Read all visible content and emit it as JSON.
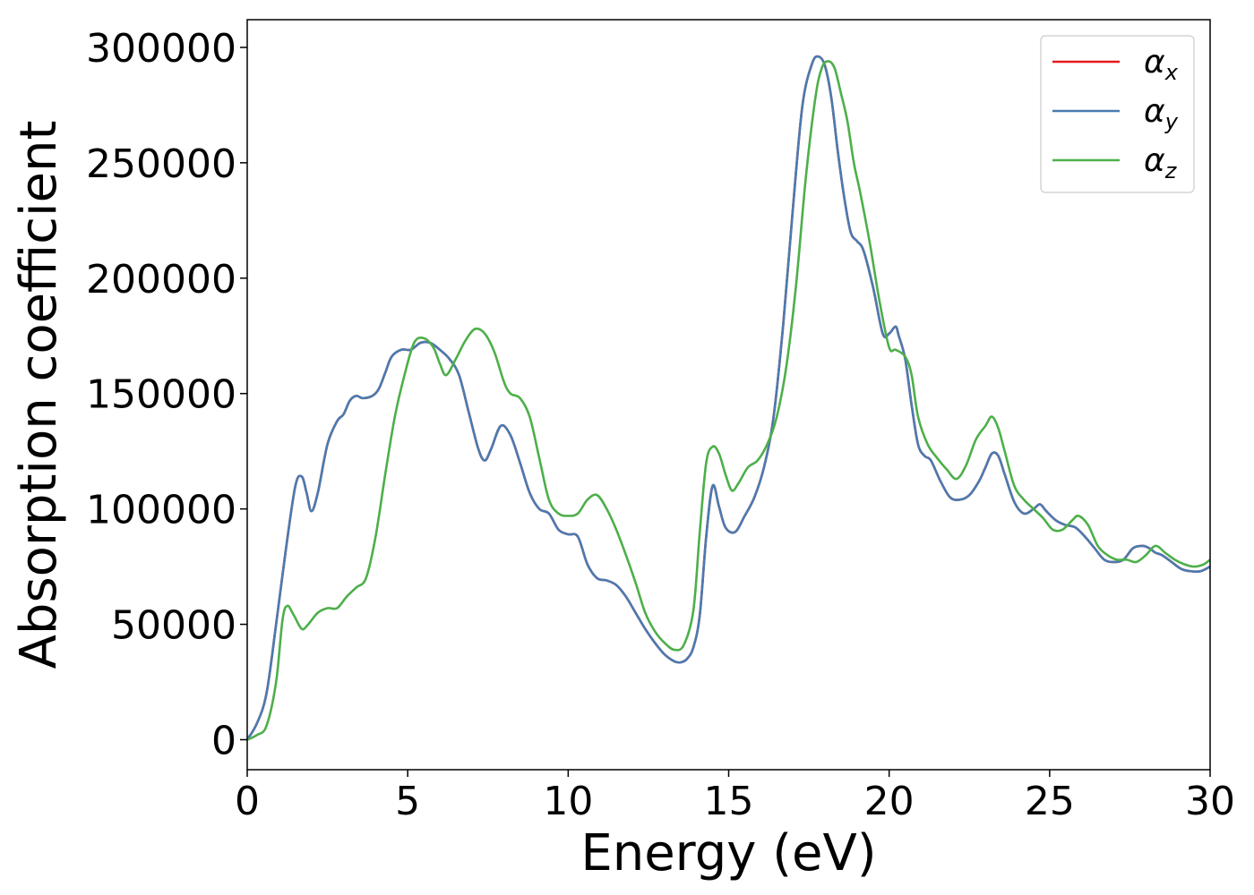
{
  "chart_data": {
    "type": "line",
    "xlabel": "Energy (eV)",
    "ylabel": "Absorption coefficient",
    "xlim": [
      0,
      30
    ],
    "ylim": [
      -13000,
      312000
    ],
    "xticks": [
      0,
      5,
      10,
      15,
      20,
      25,
      30
    ],
    "yticks": [
      0,
      50000,
      100000,
      150000,
      200000,
      250000,
      300000
    ],
    "legend_position": "top-right",
    "grid": false,
    "series": [
      {
        "name": "α",
        "subscript": "x",
        "color": "#e41a1c",
        "x": [
          0,
          0.3,
          0.6,
          0.9,
          1.2,
          1.5,
          1.7,
          1.85,
          2.0,
          2.2,
          2.5,
          2.8,
          3.0,
          3.2,
          3.4,
          3.6,
          3.9,
          4.1,
          4.3,
          4.5,
          4.8,
          5.1,
          5.4,
          5.7,
          6.0,
          6.3,
          6.6,
          6.9,
          7.2,
          7.4,
          7.6,
          7.9,
          8.2,
          8.5,
          8.8,
          9.1,
          9.4,
          9.7,
          10.0,
          10.3,
          10.6,
          10.9,
          11.2,
          11.5,
          11.8,
          12.1,
          12.4,
          12.7,
          13.0,
          13.3,
          13.5,
          13.7,
          13.9,
          14.1,
          14.3,
          14.5,
          14.7,
          14.9,
          15.2,
          15.5,
          15.8,
          16.1,
          16.4,
          16.7,
          17.0,
          17.3,
          17.6,
          17.8,
          18.0,
          18.2,
          18.4,
          18.6,
          18.8,
          19.0,
          19.2,
          19.5,
          19.8,
          20.0,
          20.2,
          20.3,
          20.5,
          20.7,
          20.9,
          21.1,
          21.3,
          21.6,
          21.9,
          22.2,
          22.5,
          22.8,
          23.0,
          23.2,
          23.4,
          23.6,
          23.9,
          24.2,
          24.5,
          24.7,
          24.9,
          25.2,
          25.5,
          25.8,
          26.1,
          26.4,
          26.7,
          27.0,
          27.3,
          27.6,
          27.9,
          28.1,
          28.3,
          28.5,
          28.8,
          29.1,
          29.4,
          29.7,
          30.0
        ],
        "y": [
          0,
          7000,
          20000,
          50000,
          82000,
          110000,
          114000,
          107000,
          99000,
          107000,
          128000,
          138000,
          141000,
          147000,
          149000,
          148000,
          149000,
          152000,
          159000,
          166000,
          169000,
          169000,
          172000,
          172000,
          169000,
          165000,
          158000,
          142000,
          126000,
          121000,
          126000,
          136000,
          132000,
          120000,
          107000,
          100000,
          98000,
          91000,
          89000,
          88000,
          76000,
          70000,
          69000,
          67000,
          62000,
          55000,
          48000,
          42000,
          37000,
          34000,
          33500,
          35000,
          40000,
          54000,
          88000,
          110000,
          101000,
          92000,
          90000,
          97000,
          105000,
          118000,
          140000,
          180000,
          230000,
          275000,
          293000,
          296000,
          292000,
          278000,
          255000,
          235000,
          220000,
          216000,
          212000,
          196000,
          176000,
          176000,
          179000,
          175000,
          165000,
          145000,
          128000,
          123000,
          121000,
          112000,
          105000,
          104000,
          106000,
          112000,
          118000,
          124000,
          123000,
          115000,
          103000,
          98000,
          100000,
          102000,
          99000,
          95000,
          93000,
          92000,
          88000,
          83000,
          78000,
          77000,
          78000,
          83000,
          84000,
          83000,
          81000,
          80000,
          77000,
          74000,
          73000,
          73000,
          75000
        ]
      },
      {
        "name": "α",
        "subscript": "y",
        "color": "#4a7bb0",
        "x": [
          0,
          0.3,
          0.6,
          0.9,
          1.2,
          1.5,
          1.7,
          1.85,
          2.0,
          2.2,
          2.5,
          2.8,
          3.0,
          3.2,
          3.4,
          3.6,
          3.9,
          4.1,
          4.3,
          4.5,
          4.8,
          5.1,
          5.4,
          5.7,
          6.0,
          6.3,
          6.6,
          6.9,
          7.2,
          7.4,
          7.6,
          7.9,
          8.2,
          8.5,
          8.8,
          9.1,
          9.4,
          9.7,
          10.0,
          10.3,
          10.6,
          10.9,
          11.2,
          11.5,
          11.8,
          12.1,
          12.4,
          12.7,
          13.0,
          13.3,
          13.5,
          13.7,
          13.9,
          14.1,
          14.3,
          14.5,
          14.7,
          14.9,
          15.2,
          15.5,
          15.8,
          16.1,
          16.4,
          16.7,
          17.0,
          17.3,
          17.6,
          17.8,
          18.0,
          18.2,
          18.4,
          18.6,
          18.8,
          19.0,
          19.2,
          19.5,
          19.8,
          20.0,
          20.2,
          20.3,
          20.5,
          20.7,
          20.9,
          21.1,
          21.3,
          21.6,
          21.9,
          22.2,
          22.5,
          22.8,
          23.0,
          23.2,
          23.4,
          23.6,
          23.9,
          24.2,
          24.5,
          24.7,
          24.9,
          25.2,
          25.5,
          25.8,
          26.1,
          26.4,
          26.7,
          27.0,
          27.3,
          27.6,
          27.9,
          28.1,
          28.3,
          28.5,
          28.8,
          29.1,
          29.4,
          29.7,
          30.0
        ],
        "y": [
          0,
          7000,
          20000,
          50000,
          82000,
          110000,
          114000,
          107000,
          99000,
          107000,
          128000,
          138000,
          141000,
          147000,
          149000,
          148000,
          149000,
          152000,
          159000,
          166000,
          169000,
          169000,
          172000,
          172000,
          169000,
          165000,
          158000,
          142000,
          126000,
          121000,
          126000,
          136000,
          132000,
          120000,
          107000,
          100000,
          98000,
          91000,
          89000,
          88000,
          76000,
          70000,
          69000,
          67000,
          62000,
          55000,
          48000,
          42000,
          37000,
          34000,
          33500,
          35000,
          40000,
          54000,
          88000,
          110000,
          101000,
          92000,
          90000,
          97000,
          105000,
          118000,
          140000,
          180000,
          230000,
          275000,
          293000,
          296000,
          292000,
          278000,
          255000,
          235000,
          220000,
          216000,
          212000,
          196000,
          176000,
          176000,
          179000,
          175000,
          165000,
          145000,
          128000,
          123000,
          121000,
          112000,
          105000,
          104000,
          106000,
          112000,
          118000,
          124000,
          123000,
          115000,
          103000,
          98000,
          100000,
          102000,
          99000,
          95000,
          93000,
          92000,
          88000,
          83000,
          78000,
          77000,
          78000,
          83000,
          84000,
          83000,
          81000,
          80000,
          77000,
          74000,
          73000,
          73000,
          75000
        ]
      },
      {
        "name": "α",
        "subscript": "z",
        "color": "#4daf4a",
        "x": [
          0,
          0.3,
          0.6,
          0.9,
          1.1,
          1.25,
          1.45,
          1.7,
          1.9,
          2.2,
          2.5,
          2.8,
          3.1,
          3.4,
          3.7,
          4.0,
          4.3,
          4.6,
          4.9,
          5.2,
          5.5,
          5.8,
          6.0,
          6.2,
          6.5,
          6.8,
          7.1,
          7.4,
          7.7,
          8.0,
          8.2,
          8.5,
          8.8,
          9.1,
          9.4,
          9.7,
          10.0,
          10.3,
          10.6,
          10.9,
          11.2,
          11.5,
          11.8,
          12.1,
          12.4,
          12.7,
          13.0,
          13.3,
          13.6,
          13.9,
          14.1,
          14.3,
          14.5,
          14.7,
          14.9,
          15.1,
          15.3,
          15.6,
          15.9,
          16.2,
          16.5,
          16.8,
          17.1,
          17.4,
          17.7,
          17.9,
          18.1,
          18.3,
          18.5,
          18.7,
          18.9,
          19.1,
          19.4,
          19.7,
          20.0,
          20.2,
          20.5,
          20.7,
          20.9,
          21.2,
          21.5,
          21.8,
          22.1,
          22.4,
          22.7,
          23.0,
          23.2,
          23.4,
          23.6,
          23.9,
          24.2,
          24.5,
          24.8,
          25.1,
          25.4,
          25.7,
          25.9,
          26.2,
          26.5,
          26.8,
          27.1,
          27.4,
          27.7,
          28.0,
          28.3,
          28.6,
          28.9,
          29.2,
          29.5,
          29.8,
          30.0
        ],
        "y": [
          0,
          2000,
          6000,
          25000,
          52000,
          58000,
          54000,
          48000,
          50000,
          55000,
          57000,
          57000,
          62000,
          66000,
          70000,
          88000,
          115000,
          140000,
          158000,
          172000,
          174000,
          170000,
          163000,
          158000,
          165000,
          173000,
          178000,
          176000,
          168000,
          155000,
          150000,
          148000,
          140000,
          122000,
          104000,
          98000,
          97000,
          98000,
          104000,
          106000,
          100000,
          91000,
          80000,
          68000,
          55000,
          47000,
          42000,
          39000,
          41000,
          56000,
          90000,
          120000,
          127000,
          124000,
          115000,
          108000,
          111000,
          118000,
          121000,
          128000,
          140000,
          162000,
          197000,
          243000,
          278000,
          291000,
          294000,
          291000,
          280000,
          268000,
          250000,
          237000,
          215000,
          190000,
          170000,
          169000,
          166000,
          158000,
          140000,
          128000,
          122000,
          117000,
          113000,
          119000,
          130000,
          136000,
          140000,
          135000,
          125000,
          110000,
          104000,
          100000,
          96000,
          91000,
          91000,
          95000,
          97000,
          93000,
          84000,
          80000,
          78000,
          78000,
          77000,
          80000,
          84000,
          81000,
          78000,
          76000,
          75000,
          76000,
          78000
        ]
      }
    ]
  }
}
